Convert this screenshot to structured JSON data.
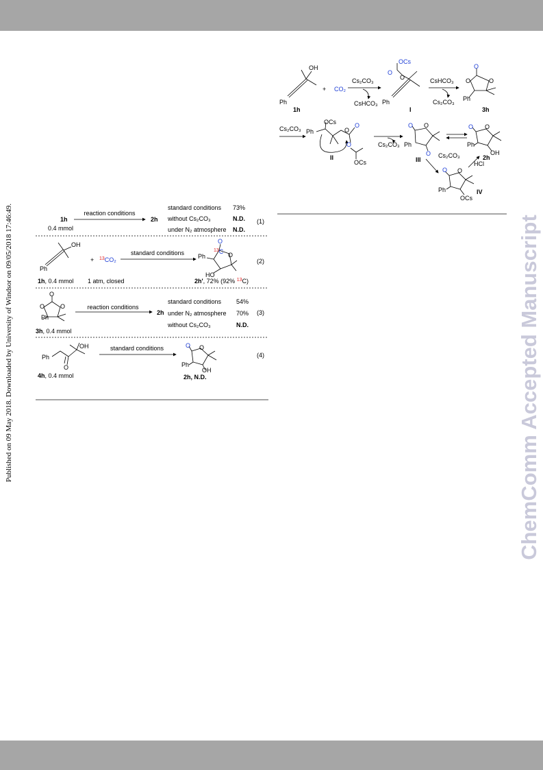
{
  "sidebar": {
    "left": "Published on 09 May 2018. Downloaded by University of Windsor on 09/05/2018 17:46:49.",
    "watermark": "ChemComm Accepted Manuscript"
  },
  "mechanism": {
    "row1": {
      "sub_oh": "OH",
      "sub_ph": "Ph",
      "sub_label": "1h",
      "plus": "+",
      "co2": "CO₂",
      "a1_top": "Cs₂CO₃",
      "a1_bottom": "CsHCO₃",
      "i_ocs": "OCs",
      "i_o1": "O",
      "i_o2": "O",
      "i_ph": "Ph",
      "i_label": "I",
      "a2_top": "CsHCO₃",
      "a2_bottom": "Cs₂CO₃",
      "p_o1": "O",
      "p_o2": "O",
      "p_o3": "O",
      "p_ph": "Ph",
      "p_label": "3h"
    },
    "row2": {
      "a3_top": "Cs₂CO₃",
      "ii_ph": "Ph",
      "ii_ocs": "OCs",
      "ii_o1": "O",
      "ii_o2": "O",
      "ii_o3": "O",
      "ii_ocs2": "OCs",
      "ii_label": "II",
      "a4_bottom": "Cs₂CO₃",
      "iii_o1": "O",
      "iii_o2": "O",
      "iii_ph": "Ph",
      "iii_o3": "O",
      "iii_label": "III",
      "h_o1": "O",
      "h_o2": "O",
      "h_ph": "Ph",
      "h_oh": "OH",
      "h_label": "2h",
      "a5": "Cs₂CO₃",
      "a6": "HCl",
      "iv_o1": "O",
      "iv_o2": "O",
      "iv_ph": "Ph",
      "iv_ocs": "OCs",
      "iv_label": "IV"
    }
  },
  "controls": {
    "e1": {
      "substrate": "1h",
      "amount": "0.4 mmol",
      "arrow": "reaction conditions",
      "product": "2h",
      "rows": [
        [
          "standard conditions",
          "73%"
        ],
        [
          "without Cs₂CO₃",
          "N.D."
        ],
        [
          "under N₂ atmosphere",
          "N.D."
        ]
      ],
      "number": "(1)"
    },
    "e2": {
      "oh": "OH",
      "ph": "Ph",
      "plus": "+",
      "co2": [
        "13",
        "CO₂"
      ],
      "arrow": "standard conditions",
      "p_o": "O",
      "p_c": [
        "13",
        "C"
      ],
      "p_ph": "Ph",
      "p_o2": "O",
      "p_ho": "HO",
      "substrate": [
        "1h",
        ", 0.4 mmol"
      ],
      "pressure": "1 atm, closed",
      "result": [
        "2h'",
        ", 72% (92% ",
        "13",
        "C)"
      ],
      "number": "(2)"
    },
    "e3": {
      "o1": "O",
      "o2": "O",
      "o3": "O",
      "ph": "Ph",
      "substrate": [
        "3h",
        ", 0.4 mmol"
      ],
      "arrow": "reaction conditions",
      "product": "2h",
      "rows": [
        [
          "standard conditions",
          "54%"
        ],
        [
          "under N₂ atmosphere",
          "70%"
        ],
        [
          "without Cs₂CO₃",
          "N.D."
        ]
      ],
      "number": "(3)"
    },
    "e4": {
      "ph": "Ph",
      "oh": "OH",
      "o": "O",
      "substrate": [
        "4h",
        ", 0.4 mmol"
      ],
      "arrow": "standard conditions",
      "p_o1": "O",
      "p_o2": "O",
      "p_ph": "Ph",
      "p_oh": "OH",
      "result": "2h, N.D.",
      "number": "(4)"
    }
  }
}
